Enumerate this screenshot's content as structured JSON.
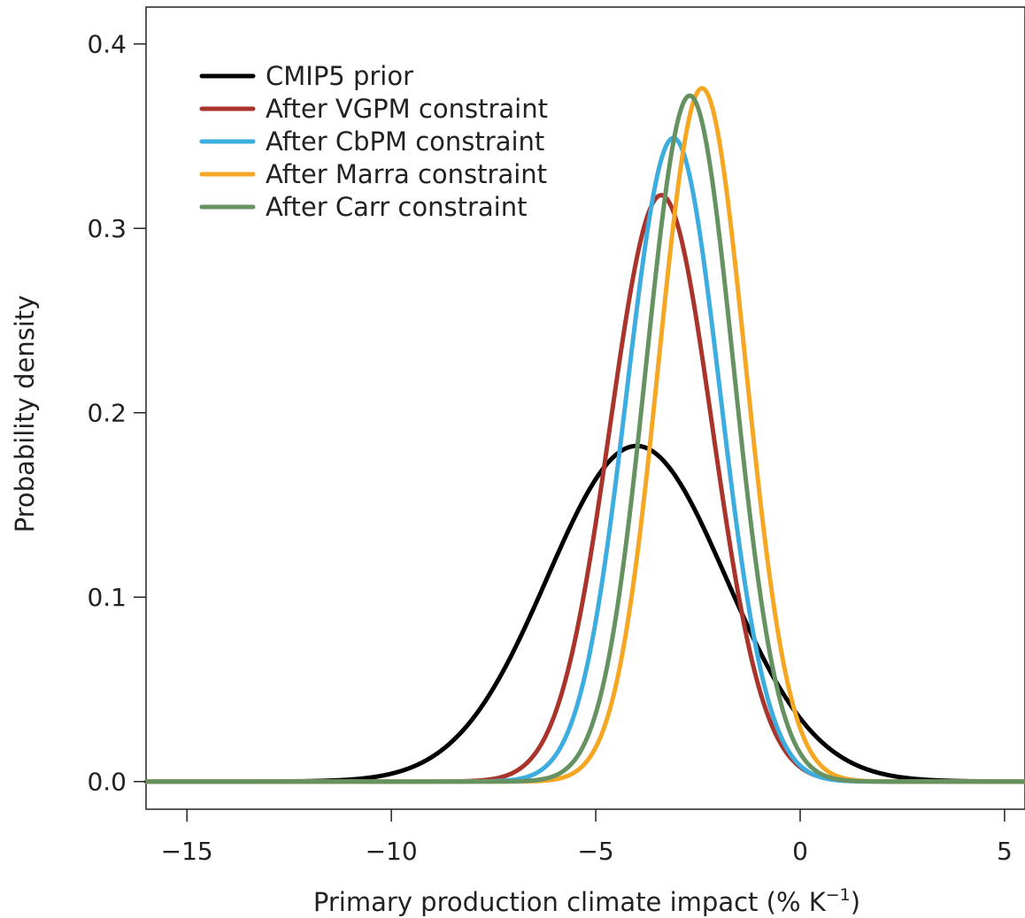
{
  "chart_data": {
    "type": "line",
    "title": "",
    "xlabel": "Primary production climate impact (% K",
    "xlabel_sup": "−1",
    "xlabel_close": ")",
    "ylabel": "Probability density",
    "xlim": [
      -16,
      5.5
    ],
    "ylim": [
      -0.015,
      0.42
    ],
    "xticks": [
      -15,
      -10,
      -5,
      0,
      5
    ],
    "xtick_labels": [
      "−15",
      "−10",
      "−5",
      "0",
      "5"
    ],
    "yticks": [
      0.0,
      0.1,
      0.2,
      0.3,
      0.4
    ],
    "ytick_labels": [
      "0.0",
      "0.1",
      "0.2",
      "0.3",
      "0.4"
    ],
    "grid": false,
    "legend_position": "top-left",
    "series": [
      {
        "name": "CMIP5 prior",
        "color": "#000000",
        "distribution": "normal",
        "mean": -4.0,
        "sd": 2.19,
        "peak": 0.182
      },
      {
        "name": "After VGPM constraint",
        "color": "#a8342b",
        "distribution": "normal",
        "mean": -3.4,
        "sd": 1.25,
        "peak": 0.318
      },
      {
        "name": "After CbPM constraint",
        "color": "#3dacde",
        "distribution": "normal",
        "mean": -3.1,
        "sd": 1.14,
        "peak": 0.349
      },
      {
        "name": "After Marra constraint",
        "color": "#f5a623",
        "distribution": "normal",
        "mean": -2.4,
        "sd": 1.06,
        "peak": 0.376
      },
      {
        "name": "After Carr constraint",
        "color": "#669261",
        "distribution": "normal",
        "mean": -2.7,
        "sd": 1.07,
        "peak": 0.372
      }
    ]
  }
}
